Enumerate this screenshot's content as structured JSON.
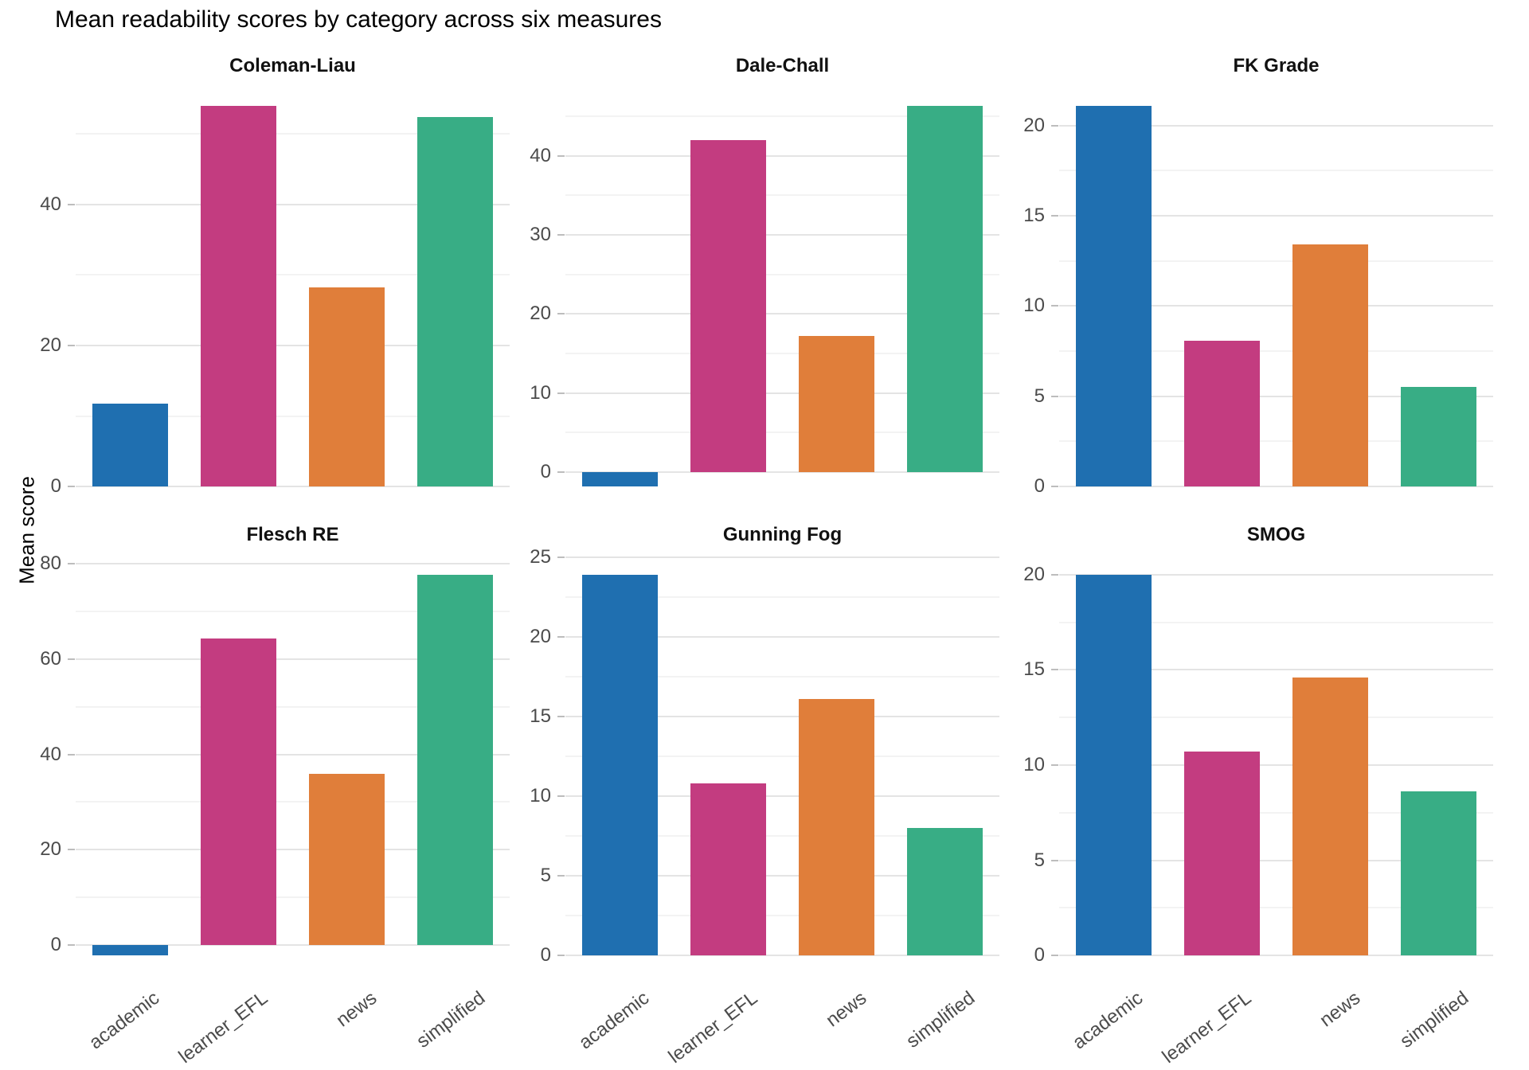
{
  "title": "Mean readability scores by category across six measures",
  "ylabel": "Mean score",
  "categories": [
    "academic",
    "learner_EFL",
    "news",
    "simplified"
  ],
  "palette": {
    "academic": "#1F6FB0",
    "learner_EFL": "#C33C80",
    "news": "#E07E3A",
    "simplified": "#38AD85"
  },
  "style_colors": {
    "background": "#ffffff",
    "major_gridline": "#e4e4e4",
    "minor_gridline": "#f3f3f3",
    "axis_text": "#4b4b4b",
    "tick_mark": "#bdbdbd",
    "title_text": "#000000",
    "strip_text": "#111111"
  },
  "chart_data": [
    {
      "type": "bar",
      "title": "Coleman-Liau",
      "categories": [
        "academic",
        "learner_EFL",
        "news",
        "simplified"
      ],
      "values": [
        11.8,
        54.0,
        28.2,
        52.4
      ],
      "yticks": [
        0,
        20,
        40
      ],
      "ylim": [
        -2.97,
        56.7
      ],
      "ylabel": "Mean score",
      "grid": "major+minor",
      "legend": false
    },
    {
      "type": "bar",
      "title": "Dale-Chall",
      "categories": [
        "academic",
        "learner_EFL",
        "news",
        "simplified"
      ],
      "values": [
        -1.8,
        42.0,
        17.2,
        46.3
      ],
      "yticks": [
        0,
        10,
        20,
        30,
        40
      ],
      "ylim": [
        -4.2,
        48.7
      ],
      "ylabel": "Mean score",
      "grid": "major+minor",
      "legend": false
    },
    {
      "type": "bar",
      "title": "FK Grade",
      "categories": [
        "academic",
        "learner_EFL",
        "news",
        "simplified"
      ],
      "values": [
        21.1,
        8.1,
        13.4,
        5.5
      ],
      "yticks": [
        0,
        5,
        10,
        15,
        20
      ],
      "ylim": [
        -1.06,
        22.16
      ],
      "ylabel": "Mean score",
      "grid": "major+minor",
      "legend": false
    },
    {
      "type": "bar",
      "title": "Flesch RE",
      "categories": [
        "academic",
        "learner_EFL",
        "news",
        "simplified"
      ],
      "values": [
        -2.1,
        64.2,
        35.9,
        77.6
      ],
      "yticks": [
        0,
        20,
        40,
        60,
        80
      ],
      "ylim": [
        -6.09,
        81.59
      ],
      "ylabel": "Mean score",
      "grid": "major+minor",
      "legend": false
    },
    {
      "type": "bar",
      "title": "Gunning Fog",
      "categories": [
        "academic",
        "learner_EFL",
        "news",
        "simplified"
      ],
      "values": [
        23.9,
        10.8,
        16.1,
        8.0
      ],
      "yticks": [
        0,
        5,
        10,
        15,
        20,
        25
      ],
      "ylim": [
        -1.2,
        25.1
      ],
      "ylabel": "Mean score",
      "grid": "major+minor",
      "legend": false
    },
    {
      "type": "bar",
      "title": "SMOG",
      "categories": [
        "academic",
        "learner_EFL",
        "news",
        "simplified"
      ],
      "values": [
        20.0,
        10.7,
        14.6,
        8.6
      ],
      "yticks": [
        0,
        5,
        10,
        15,
        20
      ],
      "ylim": [
        -1.0,
        21.0
      ],
      "ylabel": "Mean score",
      "grid": "major+minor",
      "legend": false
    }
  ]
}
